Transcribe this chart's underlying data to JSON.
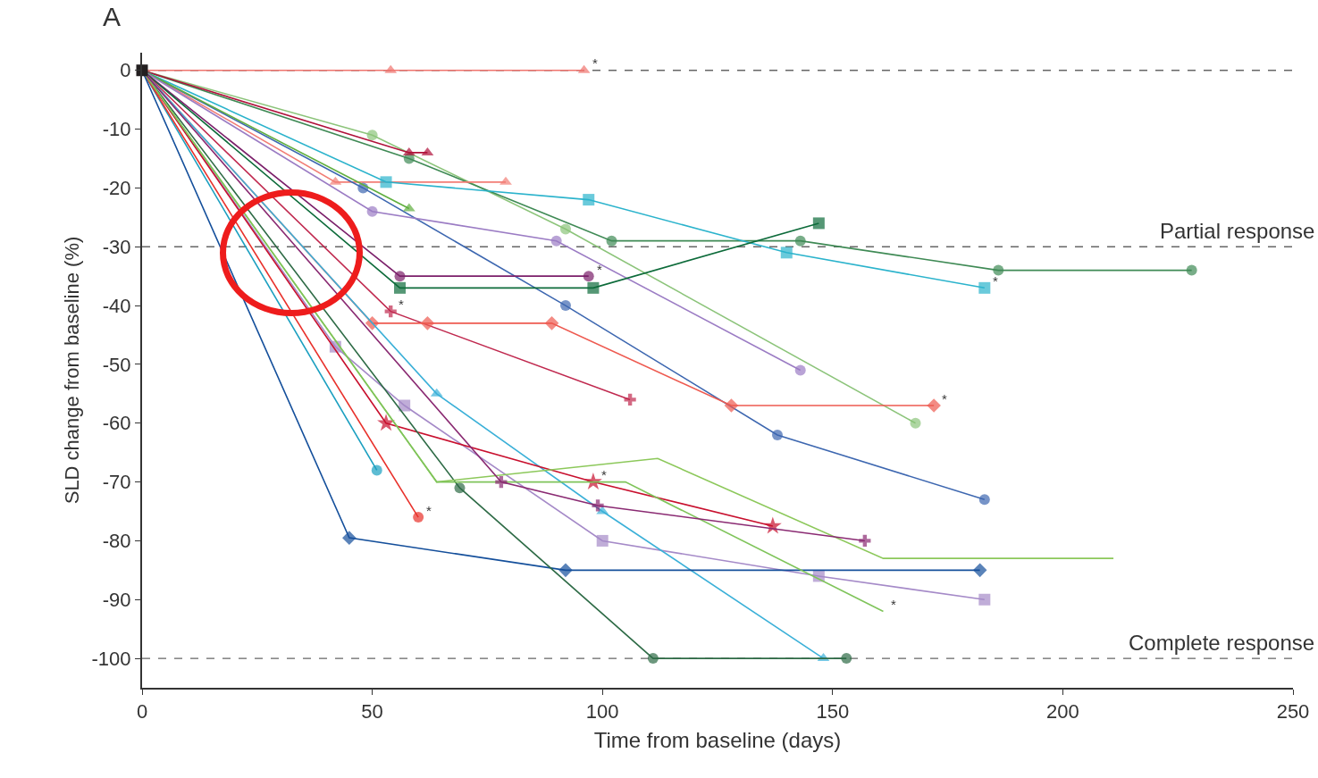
{
  "chart_data": {
    "type": "line",
    "title": "A",
    "xlabel": "Time from baseline (days)",
    "ylabel": "SLD change from baseline (%)",
    "xlim": [
      0,
      250
    ],
    "xticks": [
      0,
      50,
      100,
      150,
      200,
      250
    ],
    "ylim": [
      -105,
      3
    ],
    "yticks": [
      0,
      -10,
      -20,
      -30,
      -40,
      -50,
      -60,
      -70,
      -80,
      -90,
      -100
    ],
    "grid": false,
    "ref_lines": [
      {
        "axis": "y",
        "value": 0,
        "label": null,
        "color": "#666666",
        "line_style": "dashed"
      },
      {
        "axis": "y",
        "value": -30,
        "label": "Partial response",
        "color": "#666666",
        "line_style": "dashed"
      },
      {
        "axis": "y",
        "value": -100,
        "label": "Complete response",
        "color": "#666666",
        "line_style": "dashed"
      }
    ],
    "annotations": [
      {
        "text": "*",
        "x": 96,
        "y": 0
      },
      {
        "text": "*",
        "x": 97,
        "y": -35
      },
      {
        "text": "*",
        "x": 54,
        "y": -41
      },
      {
        "text": "*",
        "x": 183,
        "y": -37
      },
      {
        "text": "*",
        "x": 172,
        "y": -57
      },
      {
        "text": "*",
        "x": 98,
        "y": -70
      },
      {
        "text": "*",
        "x": 60,
        "y": -76
      },
      {
        "text": "*",
        "x": 161,
        "y": -92
      }
    ],
    "series": [
      {
        "color": "#f0746e",
        "marker": "triangle",
        "x": [
          0,
          54,
          96
        ],
        "values": [
          0,
          0,
          0
        ]
      },
      {
        "color": "#8cc47a",
        "marker": "circle",
        "x": [
          0,
          50,
          92,
          168
        ],
        "values": [
          0,
          -11,
          -27,
          -60
        ]
      },
      {
        "color": "#3f8a55",
        "marker": "circle",
        "x": [
          0,
          58,
          102,
          143,
          186,
          228
        ],
        "values": [
          0,
          -15,
          -29,
          -29,
          -34,
          -34
        ]
      },
      {
        "color": "#b0113a",
        "marker": "triangle",
        "x": [
          0,
          58,
          62
        ],
        "values": [
          0,
          -14,
          -14
        ]
      },
      {
        "color": "#f27d75",
        "marker": "triangle",
        "x": [
          0,
          42,
          79
        ],
        "values": [
          0,
          -19,
          -19
        ]
      },
      {
        "color": "#2bb3cc",
        "marker": "square",
        "x": [
          0,
          53,
          97,
          140,
          183
        ],
        "values": [
          0,
          -19,
          -22,
          -31,
          -37
        ]
      },
      {
        "color": "#3d67b0",
        "marker": "circle",
        "x": [
          0,
          48,
          92,
          138,
          183
        ],
        "values": [
          0,
          -20,
          -40,
          -62,
          -73
        ]
      },
      {
        "color": "#5fae3e",
        "marker": "triangle",
        "x": [
          0,
          58
        ],
        "values": [
          0,
          -23.5
        ]
      },
      {
        "color": "#9b7cc4",
        "marker": "circle",
        "x": [
          0,
          50,
          90,
          143
        ],
        "values": [
          0,
          -24,
          -29,
          -51
        ]
      },
      {
        "color": "#7b1f6a",
        "marker": "circle",
        "x": [
          0,
          56,
          97
        ],
        "values": [
          0,
          -35,
          -35
        ]
      },
      {
        "color": "#0d6b3a",
        "marker": "square",
        "x": [
          0,
          56,
          98,
          147
        ],
        "values": [
          0,
          -37,
          -37,
          -26
        ]
      },
      {
        "color": "#c0294f",
        "marker": "cross",
        "x": [
          0,
          54,
          106
        ],
        "values": [
          0,
          -41,
          -56
        ]
      },
      {
        "color": "#ee5a50",
        "marker": "diamond",
        "x": [
          0,
          50,
          62,
          89,
          128,
          172
        ],
        "values": [
          0,
          -43,
          -43,
          -43,
          -57,
          -57
        ]
      },
      {
        "color": "#a58ac8",
        "marker": "square",
        "x": [
          0,
          42,
          57,
          100,
          147,
          183
        ],
        "values": [
          0,
          -47,
          -57,
          -80,
          -86,
          -90
        ]
      },
      {
        "color": "#3bb0d8",
        "marker": "triangle",
        "x": [
          0,
          64,
          100,
          148
        ],
        "values": [
          0,
          -55,
          -75,
          -100
        ]
      },
      {
        "color": "#c8102e",
        "marker": "star",
        "x": [
          0,
          53,
          98,
          137
        ],
        "values": [
          0,
          -60,
          -70,
          -77.5
        ]
      },
      {
        "color": "#1a9fc0",
        "marker": "circle",
        "x": [
          0,
          51
        ],
        "values": [
          0,
          -68
        ]
      },
      {
        "color": "#e8302a",
        "marker": "circle",
        "x": [
          0,
          60
        ],
        "values": [
          0,
          -76
        ]
      },
      {
        "color": "#144f9b",
        "marker": "diamond",
        "x": [
          0,
          45,
          92,
          182
        ],
        "values": [
          0,
          -79.5,
          -85,
          -85
        ]
      },
      {
        "color": "#2e6b46",
        "marker": "circle",
        "x": [
          0,
          69,
          111,
          153
        ],
        "values": [
          0,
          -71,
          -100,
          -100
        ]
      },
      {
        "color": "#8cc85a",
        "marker": "none",
        "x": [
          0,
          64,
          112,
          161,
          211
        ],
        "values": [
          0,
          -70,
          -66,
          -83,
          -83
        ]
      },
      {
        "color": "#7fc45a",
        "marker": "none",
        "x": [
          0,
          64,
          105,
          161
        ],
        "values": [
          0,
          -70,
          -70,
          -92
        ]
      },
      {
        "color": "#8a2a72",
        "marker": "cross",
        "x": [
          0,
          78,
          99,
          157
        ],
        "values": [
          0,
          -70,
          -74,
          -80
        ]
      },
      {
        "color": "#231f20",
        "marker": "square",
        "x": [
          0
        ],
        "values": [
          0
        ]
      }
    ]
  }
}
